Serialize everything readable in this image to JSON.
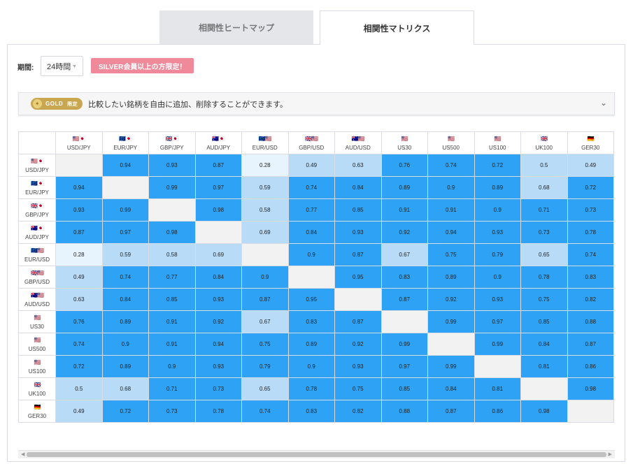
{
  "tabs": [
    {
      "label": "相関性ヒートマップ"
    },
    {
      "label": "相関性マトリクス"
    }
  ],
  "controls": {
    "period_label": "期間:",
    "period_value": "24時間",
    "silver_badge": "SILVER会員以上の方限定！"
  },
  "gold_banner": {
    "badge": "GOLD",
    "badge_limit": "限定",
    "message": "比較したい銘柄を自由に追加、削除することができます。"
  },
  "matrix": {
    "symbols": [
      {
        "name": "USD/JPY",
        "flags": "🇺🇸🇯🇵"
      },
      {
        "name": "EUR/JPY",
        "flags": "🇪🇺🇯🇵"
      },
      {
        "name": "GBP/JPY",
        "flags": "🇬🇧🇯🇵"
      },
      {
        "name": "AUD/JPY",
        "flags": "🇦🇺🇯🇵"
      },
      {
        "name": "EUR/USD",
        "flags": "🇪🇺🇺🇸"
      },
      {
        "name": "GBP/USD",
        "flags": "🇬🇧🇺🇸"
      },
      {
        "name": "AUD/USD",
        "flags": "🇦🇺🇺🇸"
      },
      {
        "name": "US30",
        "flags": "🇺🇸"
      },
      {
        "name": "US500",
        "flags": "🇺🇸"
      },
      {
        "name": "US100",
        "flags": "🇺🇸"
      },
      {
        "name": "UK100",
        "flags": "🇬🇧"
      },
      {
        "name": "GER30",
        "flags": "🇩🇪"
      }
    ],
    "values": [
      [
        null,
        0.94,
        0.93,
        0.87,
        0.28,
        0.49,
        0.63,
        0.76,
        0.74,
        0.72,
        0.5,
        0.49
      ],
      [
        0.94,
        null,
        0.99,
        0.97,
        0.59,
        0.74,
        0.84,
        0.89,
        0.9,
        0.89,
        0.68,
        0.72
      ],
      [
        0.93,
        0.99,
        null,
        0.98,
        0.58,
        0.77,
        0.85,
        0.91,
        0.91,
        0.9,
        0.71,
        0.73
      ],
      [
        0.87,
        0.97,
        0.98,
        null,
        0.69,
        0.84,
        0.93,
        0.92,
        0.94,
        0.93,
        0.73,
        0.78
      ],
      [
        0.28,
        0.59,
        0.58,
        0.69,
        null,
        0.9,
        0.87,
        0.67,
        0.75,
        0.79,
        0.65,
        0.74
      ],
      [
        0.49,
        0.74,
        0.77,
        0.84,
        0.9,
        null,
        0.95,
        0.83,
        0.89,
        0.9,
        0.78,
        0.83
      ],
      [
        0.63,
        0.84,
        0.85,
        0.93,
        0.87,
        0.95,
        null,
        0.87,
        0.92,
        0.93,
        0.75,
        0.82
      ],
      [
        0.76,
        0.89,
        0.91,
        0.92,
        0.67,
        0.83,
        0.87,
        null,
        0.99,
        0.97,
        0.85,
        0.88
      ],
      [
        0.74,
        0.9,
        0.91,
        0.94,
        0.75,
        0.89,
        0.92,
        0.99,
        null,
        0.99,
        0.84,
        0.87
      ],
      [
        0.72,
        0.89,
        0.9,
        0.93,
        0.79,
        0.9,
        0.93,
        0.97,
        0.99,
        null,
        0.81,
        0.86
      ],
      [
        0.5,
        0.68,
        0.71,
        0.73,
        0.65,
        0.78,
        0.75,
        0.85,
        0.84,
        0.81,
        null,
        0.98
      ],
      [
        0.49,
        0.72,
        0.73,
        0.78,
        0.74,
        0.83,
        0.82,
        0.88,
        0.87,
        0.86,
        0.98,
        null
      ]
    ],
    "colors": {
      "strong": "#2ea3f5",
      "medium": "#b8dcf8",
      "weak": "#e8f4fd",
      "diagonal": "#f2f2f2"
    }
  }
}
